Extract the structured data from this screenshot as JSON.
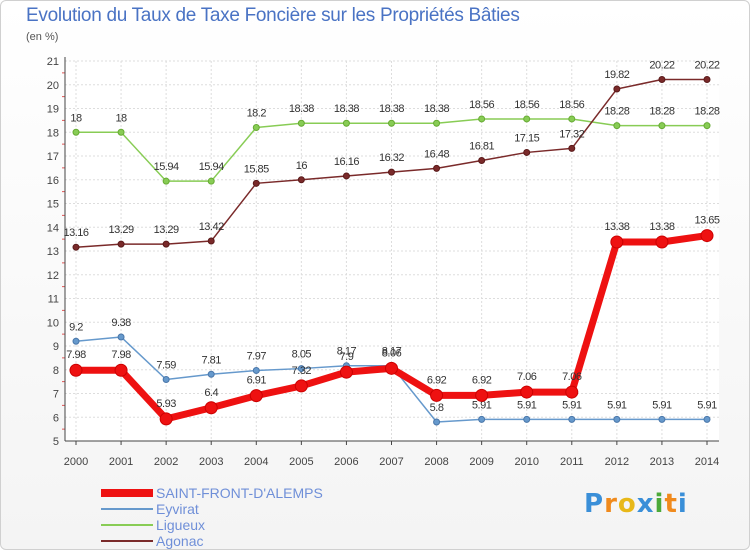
{
  "title": "Evolution du Taux de Taxe Foncière sur les Propriétés Bâties",
  "unit_label": "(en %)",
  "logo": {
    "letters": [
      "P",
      "r",
      "o",
      "x",
      "i",
      "t",
      "i"
    ],
    "colors": [
      "#3a8fd8",
      "#f08a1c",
      "#e8b818",
      "#3a8fd8",
      "#4caa3a",
      "#f08a1c",
      "#3a8fd8"
    ]
  },
  "chart_data": {
    "type": "line",
    "title": "Evolution du Taux de Taxe Foncière sur les Propriétés Bâties",
    "ylabel": "(en %)",
    "xlabel": "",
    "ylim": [
      5,
      21
    ],
    "yticks": [
      5,
      6,
      7,
      8,
      9,
      10,
      11,
      12,
      13,
      14,
      15,
      16,
      17,
      18,
      19,
      20,
      21
    ],
    "grid": true,
    "legend_position": "bottom-left",
    "x": [
      "2000",
      "2001",
      "2002",
      "2003",
      "2004",
      "2005",
      "2006",
      "2007",
      "2008",
      "2009",
      "2010",
      "2011",
      "2012",
      "2013",
      "2014"
    ],
    "series": [
      {
        "name": "Ligueux",
        "color": "#88cc55",
        "values": [
          18,
          18,
          15.94,
          15.94,
          18.2,
          18.38,
          18.38,
          18.38,
          18.38,
          18.56,
          18.56,
          18.56,
          18.28,
          18.28,
          18.28
        ],
        "labels": [
          "18",
          "18",
          "15.94",
          "15.94",
          "18.2",
          "18.38",
          "18.38",
          "18.38",
          "18.38",
          "18.56",
          "18.56",
          "18.56",
          "18.28",
          "18.28",
          "18.28"
        ]
      },
      {
        "name": "Agonac",
        "color": "#7a2a2a",
        "values": [
          13.16,
          13.29,
          13.29,
          13.42,
          15.85,
          16,
          16.16,
          16.32,
          16.48,
          16.81,
          17.15,
          17.32,
          19.82,
          20.22,
          20.22
        ],
        "labels": [
          "13.16",
          "13.29",
          "13.29",
          "13.42",
          "15.85",
          "16",
          "16.16",
          "16.32",
          "16.48",
          "16.81",
          "17.15",
          "17.32",
          "19.82",
          "20.22",
          "20.22"
        ]
      },
      {
        "name": "Eyvirat",
        "color": "#6699cc",
        "values": [
          9.2,
          9.38,
          7.59,
          7.81,
          7.97,
          8.05,
          8.17,
          8.17,
          5.8,
          5.91,
          5.91,
          5.91,
          5.91,
          5.91,
          5.91
        ],
        "labels": [
          "9.2",
          "9.38",
          "7.59",
          "7.81",
          "7.97",
          "8.05",
          "8.17",
          "8.17",
          "5.8",
          "5.91",
          "5.91",
          "5.91",
          "5.91",
          "5.91",
          "5.91"
        ]
      },
      {
        "name": "SAINT-FRONT-D'ALEMPS",
        "color": "#ee1111",
        "values": [
          7.98,
          7.98,
          5.93,
          6.4,
          6.91,
          7.32,
          7.9,
          8.06,
          6.92,
          6.92,
          7.06,
          7.06,
          13.38,
          13.38,
          13.65
        ],
        "labels": [
          "7.98",
          "7.98",
          "5.93",
          "6.4",
          "6.91",
          "7.32",
          "7.9",
          "8.06",
          "6.92",
          "6.92",
          "7.06",
          "7.06",
          "13.38",
          "13.38",
          "13.65"
        ]
      }
    ],
    "legend_order": [
      "SAINT-FRONT-D'ALEMPS",
      "Eyvirat",
      "Ligueux",
      "Agonac"
    ]
  }
}
